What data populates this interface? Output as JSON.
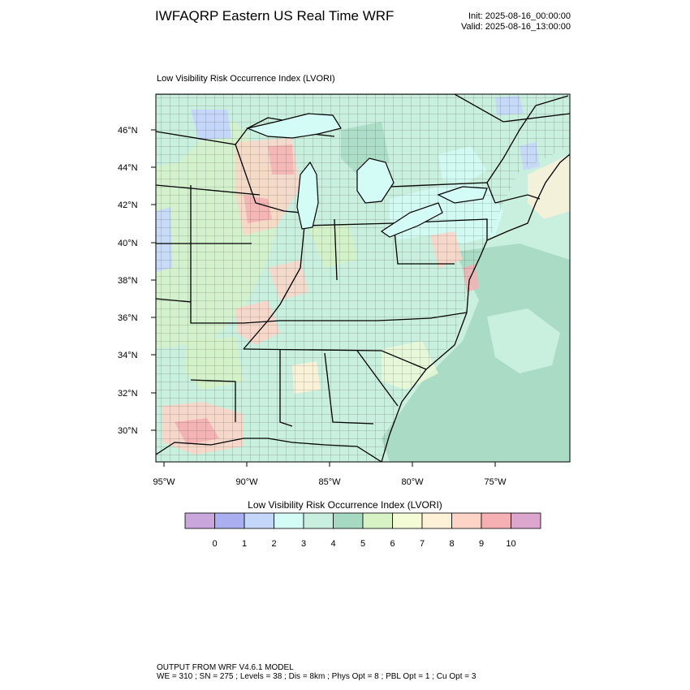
{
  "header": {
    "title": "IWFAQRP Eastern US Real Time WRF",
    "init": "Init: 2025-08-16_00:00:00",
    "valid": "Valid: 2025-08-16_13:00:00"
  },
  "plot": {
    "subtitle": "Low Visibility Risk Occurrence Index   (LVORI)",
    "lat_labels": [
      "46°N",
      "44°N",
      "42°N",
      "40°N",
      "38°N",
      "36°N",
      "34°N",
      "32°N",
      "30°N"
    ],
    "lon_labels": [
      "95°W",
      "90°W",
      "85°W",
      "80°W",
      "75°W"
    ],
    "lat_range": [
      28.5,
      47.8
    ],
    "lon_range": [
      -95.5,
      -70.5
    ]
  },
  "colorbar": {
    "title": "Low Visibility Risk Occurrence Index  (LVORI)",
    "colors": [
      "#c9a7dc",
      "#abaff0",
      "#c5d6fb",
      "#d4fcf6",
      "#c9efde",
      "#a6d9c2",
      "#d7f2c4",
      "#f4fcd6",
      "#fff1d8",
      "#fed4c7",
      "#f4b0b2",
      "#dca6cf"
    ],
    "labels": [
      "0",
      "1",
      "2",
      "3",
      "4",
      "5",
      "6",
      "7",
      "8",
      "9",
      "10"
    ]
  },
  "footer": {
    "line1": "OUTPUT FROM WRF V4.6.1 MODEL",
    "line2": "WE = 310 ; SN = 275 ; Levels = 38 ; Dis = 8km ; Phys Opt = 8 ; PBL Opt = 1 ; Cu Opt = 3"
  }
}
